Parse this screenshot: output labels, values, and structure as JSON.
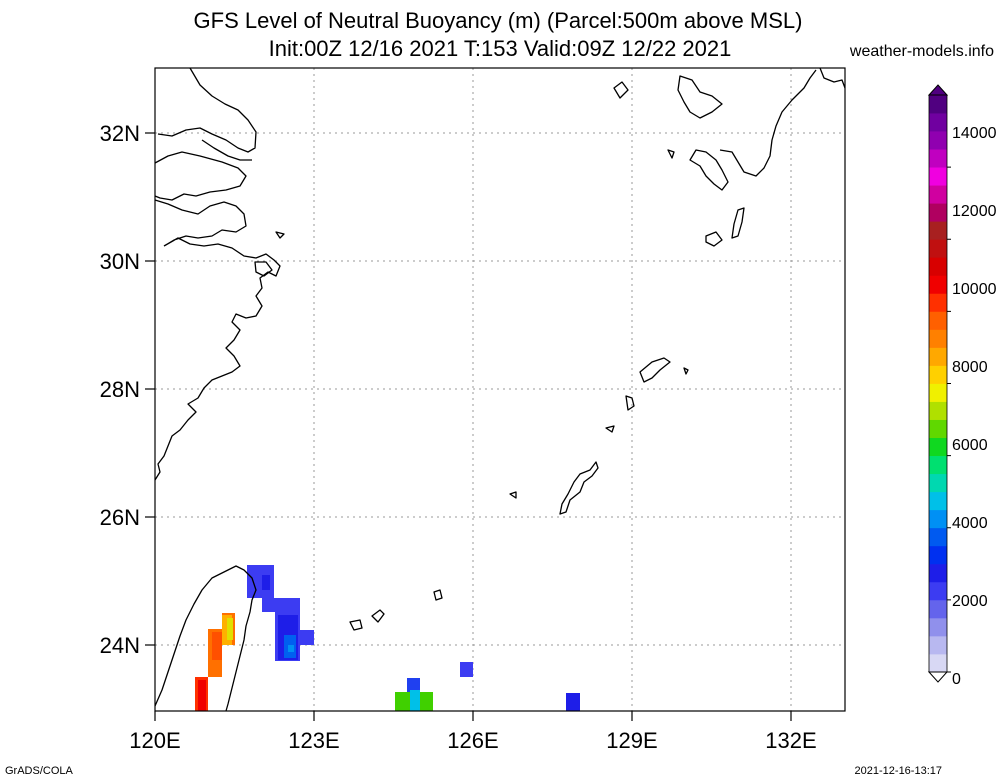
{
  "header": {
    "title_line1": "GFS Level of Neutral Buoyancy (m) (Parcel:500m above MSL)",
    "title_line2": "Init:00Z 12/16 2021 T:153 Valid:09Z 12/22 2021",
    "credit": "weather-models.info"
  },
  "footer": {
    "software": "GrADS/COLA",
    "timestamp": "2021-12-16-13:17"
  },
  "map": {
    "lat_labels": [
      "32N",
      "30N",
      "28N",
      "26N",
      "24N"
    ],
    "lon_labels": [
      "120E",
      "123E",
      "126E",
      "129E",
      "132E"
    ],
    "coastline_color": "#000000",
    "grid_color": "#888888"
  },
  "colorbar": {
    "labels": [
      "0",
      "2000",
      "4000",
      "6000",
      "8000",
      "10000",
      "12000",
      "14000"
    ],
    "colors": [
      "#d8d8f4",
      "#b8b8f0",
      "#9090ec",
      "#6464ec",
      "#3c3cf2",
      "#1e1ee8",
      "#0030f0",
      "#005af0",
      "#0090f4",
      "#00c0e8",
      "#00d8b0",
      "#00e070",
      "#10d820",
      "#60d800",
      "#b0e000",
      "#f0f000",
      "#ffd000",
      "#ffa800",
      "#ff8000",
      "#ff6000",
      "#ff3000",
      "#f00000",
      "#d80000",
      "#c01010",
      "#a82020",
      "#b00060",
      "#d000a0",
      "#f000e0",
      "#c000c0",
      "#9000b0",
      "#7000a0",
      "#500080"
    ]
  }
}
